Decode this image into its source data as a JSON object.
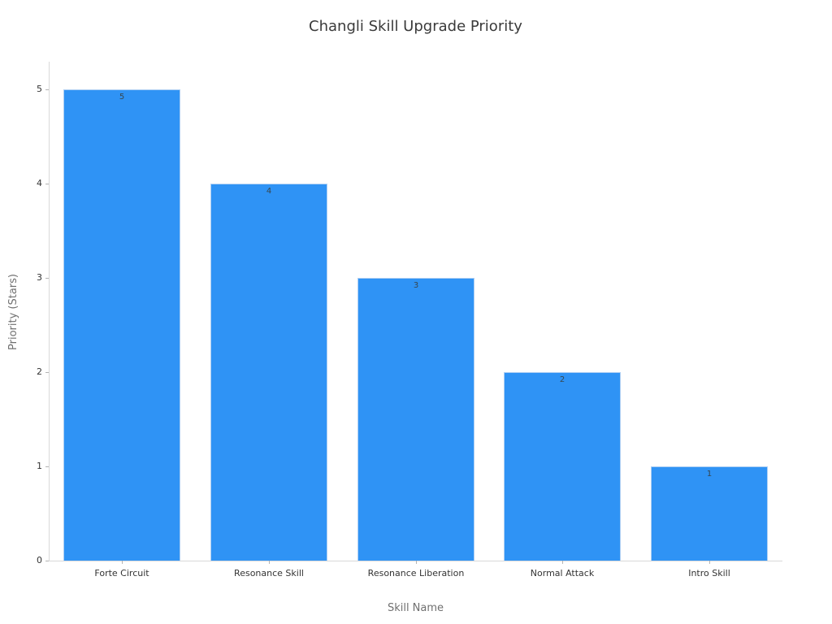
{
  "chart_data": {
    "type": "bar",
    "title": "Changli Skill Upgrade Priority",
    "xlabel": "Skill Name",
    "ylabel": "Priority (Stars)",
    "categories": [
      "Forte Circuit",
      "Resonance Skill",
      "Resonance Liberation",
      "Normal Attack",
      "Intro Skill"
    ],
    "values": [
      5,
      4,
      3,
      2,
      1
    ],
    "value_labels": [
      "5",
      "4",
      "3",
      "2",
      "1"
    ],
    "yticks": [
      0,
      1,
      2,
      3,
      4,
      5
    ],
    "ylim": [
      0,
      5
    ],
    "grid": false,
    "legend": "none",
    "background": "#ffffff",
    "bar_color": "#2f93f5",
    "bar_edge_color": "#aecff3",
    "spine_color": "#d9d9d9",
    "tick_color": "#b3b3b3",
    "tick_label_color": "#333333",
    "axis_title_color": "#707070",
    "title_color": "#3a3a3a",
    "value_label_color": "#37474f"
  }
}
